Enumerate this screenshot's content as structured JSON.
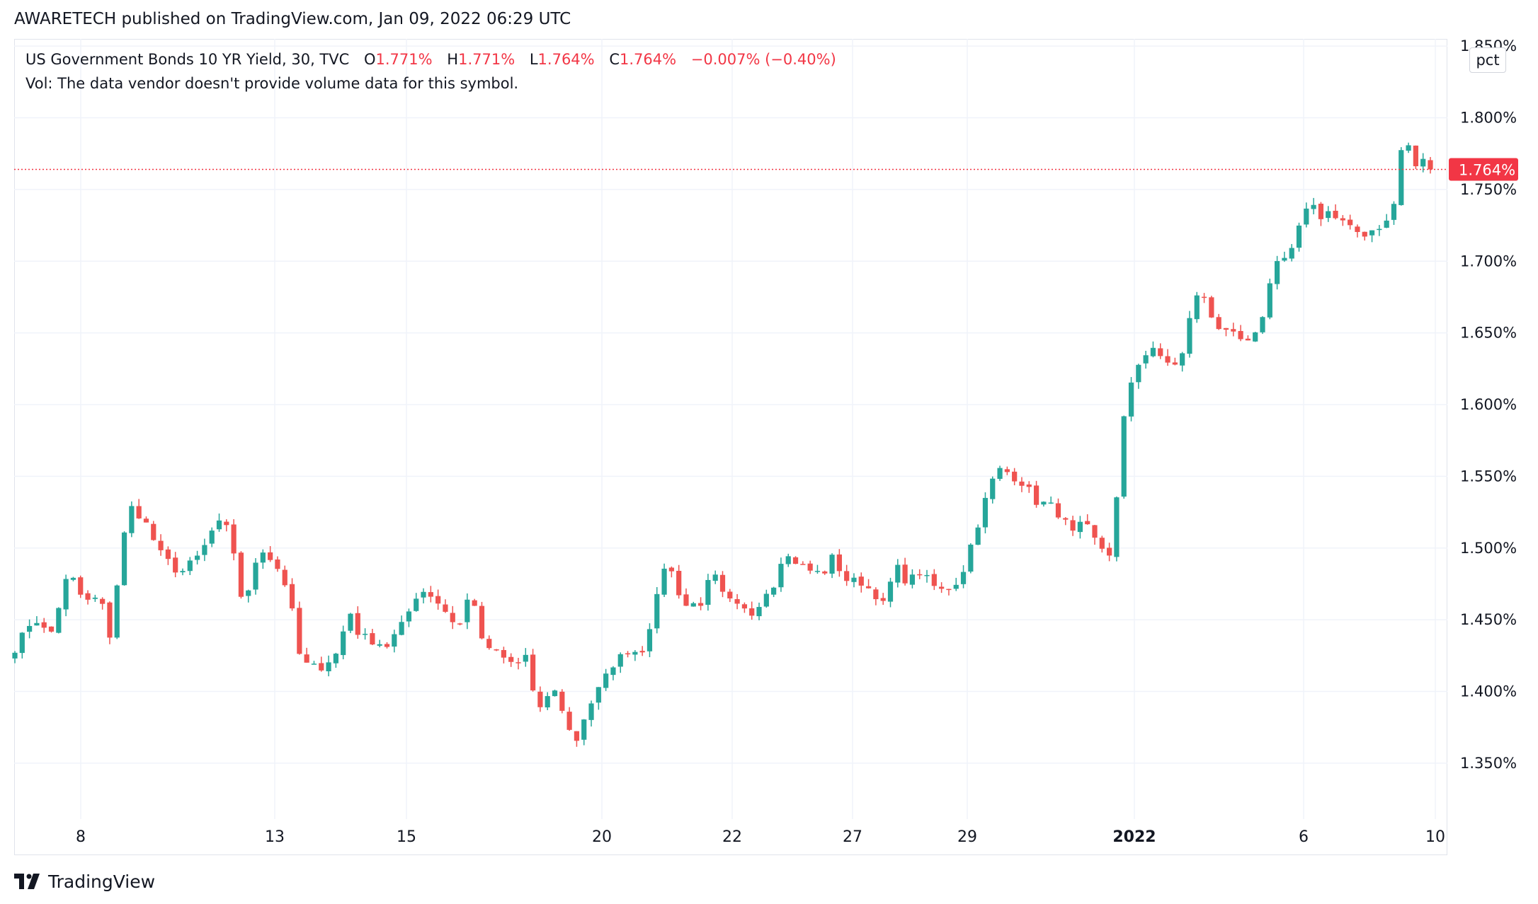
{
  "header": {
    "publisher_line": "AWARETECH published on TradingView.com, Jan 09, 2022 06:29 UTC"
  },
  "legend": {
    "symbol": "US Government Bonds 10 YR Yield, 30, TVC",
    "open_label": "O",
    "open_value": "1.771%",
    "high_label": "H",
    "high_value": "1.771%",
    "low_label": "L",
    "low_value": "1.764%",
    "close_label": "C",
    "close_value": "1.764%",
    "change": "−0.007% (−0.40%)",
    "volume_note": "Vol: The data vendor doesn't provide volume data for this symbol."
  },
  "price_scale": {
    "unit_button": "pct",
    "last_price_label": "1.764%"
  },
  "footer": {
    "brand": "TradingView"
  },
  "colors": {
    "up": "#26a69a",
    "down": "#ef5350",
    "grid": "#f0f3fa",
    "last_price_line": "#f23645",
    "text": "#131722"
  },
  "chart_data": {
    "type": "candlestick",
    "title": "US Government Bonds 10 YR Yield, 30, TVC",
    "x_tick_labels": [
      "8",
      "13",
      "15",
      "20",
      "22",
      "27",
      "29",
      "2022",
      "6",
      "10"
    ],
    "y_tick_labels": [
      "1.850%",
      "1.800%",
      "1.750%",
      "1.700%",
      "1.650%",
      "1.600%",
      "1.550%",
      "1.500%",
      "1.450%",
      "1.400%",
      "1.350%"
    ],
    "y_ticks": [
      1.85,
      1.8,
      1.75,
      1.7,
      1.65,
      1.6,
      1.55,
      1.5,
      1.45,
      1.4,
      1.35
    ],
    "ylim": [
      1.311,
      1.855
    ],
    "grid": true,
    "last_price": 1.764,
    "keypoints": [
      {
        "x": 0,
        "y": 1.43
      },
      {
        "x": 2.6,
        "y": 1.452
      },
      {
        "x": 4.8,
        "y": 1.438
      },
      {
        "x": 7.4,
        "y": 1.484
      },
      {
        "x": 9.5,
        "y": 1.462
      },
      {
        "x": 11.8,
        "y": 1.466
      },
      {
        "x": 12.8,
        "y": 1.432
      },
      {
        "x": 14.6,
        "y": 1.496
      },
      {
        "x": 15.6,
        "y": 1.53
      },
      {
        "x": 17.7,
        "y": 1.52
      },
      {
        "x": 19.8,
        "y": 1.497
      },
      {
        "x": 22.6,
        "y": 1.482
      },
      {
        "x": 25.5,
        "y": 1.496
      },
      {
        "x": 27.6,
        "y": 1.518
      },
      {
        "x": 29.5,
        "y": 1.512
      },
      {
        "x": 31.4,
        "y": 1.455
      },
      {
        "x": 33.5,
        "y": 1.502
      },
      {
        "x": 35.8,
        "y": 1.488
      },
      {
        "x": 37.5,
        "y": 1.47
      },
      {
        "x": 39.2,
        "y": 1.42
      },
      {
        "x": 41.7,
        "y": 1.416
      },
      {
        "x": 44.0,
        "y": 1.426
      },
      {
        "x": 45.9,
        "y": 1.456
      },
      {
        "x": 47.1,
        "y": 1.44
      },
      {
        "x": 48.7,
        "y": 1.436
      },
      {
        "x": 51.0,
        "y": 1.432
      },
      {
        "x": 53.3,
        "y": 1.448
      },
      {
        "x": 55.3,
        "y": 1.47
      },
      {
        "x": 56.5,
        "y": 1.47
      },
      {
        "x": 58.4,
        "y": 1.46
      },
      {
        "x": 60.8,
        "y": 1.444
      },
      {
        "x": 62.6,
        "y": 1.473
      },
      {
        "x": 63.9,
        "y": 1.435
      },
      {
        "x": 66.6,
        "y": 1.424
      },
      {
        "x": 68.6,
        "y": 1.418
      },
      {
        "x": 70.1,
        "y": 1.426
      },
      {
        "x": 71.6,
        "y": 1.382
      },
      {
        "x": 73.6,
        "y": 1.404
      },
      {
        "x": 75.0,
        "y": 1.388
      },
      {
        "x": 76.7,
        "y": 1.362
      },
      {
        "x": 78.3,
        "y": 1.386
      },
      {
        "x": 80.3,
        "y": 1.404
      },
      {
        "x": 82.1,
        "y": 1.42
      },
      {
        "x": 84.3,
        "y": 1.43
      },
      {
        "x": 85.8,
        "y": 1.426
      },
      {
        "x": 87.6,
        "y": 1.456
      },
      {
        "x": 89.3,
        "y": 1.494
      },
      {
        "x": 90.7,
        "y": 1.472
      },
      {
        "x": 92.0,
        "y": 1.46
      },
      {
        "x": 94.1,
        "y": 1.462
      },
      {
        "x": 95.6,
        "y": 1.484
      },
      {
        "x": 97.1,
        "y": 1.466
      },
      {
        "x": 99.2,
        "y": 1.458
      },
      {
        "x": 101.1,
        "y": 1.454
      },
      {
        "x": 102.7,
        "y": 1.468
      },
      {
        "x": 104.2,
        "y": 1.476
      },
      {
        "x": 105.2,
        "y": 1.496
      },
      {
        "x": 107.2,
        "y": 1.49
      },
      {
        "x": 109.1,
        "y": 1.484
      },
      {
        "x": 110.8,
        "y": 1.482
      },
      {
        "x": 112.1,
        "y": 1.494
      },
      {
        "x": 113.8,
        "y": 1.478
      },
      {
        "x": 116.1,
        "y": 1.476
      },
      {
        "x": 117.9,
        "y": 1.468
      },
      {
        "x": 119.1,
        "y": 1.46
      },
      {
        "x": 120.7,
        "y": 1.488
      },
      {
        "x": 122.3,
        "y": 1.476
      },
      {
        "x": 124.1,
        "y": 1.484
      },
      {
        "x": 125.7,
        "y": 1.474
      },
      {
        "x": 127.2,
        "y": 1.47
      },
      {
        "x": 129.0,
        "y": 1.476
      },
      {
        "x": 130.1,
        "y": 1.486
      },
      {
        "x": 131.0,
        "y": 1.502
      },
      {
        "x": 132.2,
        "y": 1.52
      },
      {
        "x": 133.7,
        "y": 1.545
      },
      {
        "x": 135.2,
        "y": 1.556
      },
      {
        "x": 136.8,
        "y": 1.55
      },
      {
        "x": 138.5,
        "y": 1.544
      },
      {
        "x": 140.3,
        "y": 1.53
      },
      {
        "x": 141.5,
        "y": 1.532
      },
      {
        "x": 143.4,
        "y": 1.522
      },
      {
        "x": 145.0,
        "y": 1.51
      },
      {
        "x": 146.5,
        "y": 1.518
      },
      {
        "x": 148.2,
        "y": 1.504
      },
      {
        "x": 149.4,
        "y": 1.498
      },
      {
        "x": 150.1,
        "y": 1.496
      },
      {
        "x": 150.6,
        "y": 1.53
      },
      {
        "x": 151.0,
        "y": 1.534
      },
      {
        "x": 151.7,
        "y": 1.58
      },
      {
        "x": 152.7,
        "y": 1.612
      },
      {
        "x": 154.2,
        "y": 1.632
      },
      {
        "x": 155.8,
        "y": 1.638
      },
      {
        "x": 157.4,
        "y": 1.632
      },
      {
        "x": 159.4,
        "y": 1.626
      },
      {
        "x": 160.4,
        "y": 1.64
      },
      {
        "x": 161.3,
        "y": 1.672
      },
      {
        "x": 162.8,
        "y": 1.678
      },
      {
        "x": 164.2,
        "y": 1.66
      },
      {
        "x": 165.5,
        "y": 1.65
      },
      {
        "x": 167.0,
        "y": 1.648
      },
      {
        "x": 168.9,
        "y": 1.642
      },
      {
        "x": 170.4,
        "y": 1.65
      },
      {
        "x": 171.8,
        "y": 1.68
      },
      {
        "x": 173.2,
        "y": 1.706
      },
      {
        "x": 174.5,
        "y": 1.7
      },
      {
        "x": 175.4,
        "y": 1.716
      },
      {
        "x": 176.4,
        "y": 1.728
      },
      {
        "x": 177.8,
        "y": 1.742
      },
      {
        "x": 178.7,
        "y": 1.73
      },
      {
        "x": 180.2,
        "y": 1.736
      },
      {
        "x": 181.8,
        "y": 1.728
      },
      {
        "x": 183.4,
        "y": 1.724
      },
      {
        "x": 184.6,
        "y": 1.716
      },
      {
        "x": 186.0,
        "y": 1.72
      },
      {
        "x": 187.8,
        "y": 1.726
      },
      {
        "x": 188.8,
        "y": 1.73
      },
      {
        "x": 189.3,
        "y": 1.762
      },
      {
        "x": 189.9,
        "y": 1.776
      },
      {
        "x": 190.5,
        "y": 1.792
      },
      {
        "x": 191.2,
        "y": 1.776
      },
      {
        "x": 192.0,
        "y": 1.768
      },
      {
        "x": 193.0,
        "y": 1.77
      },
      {
        "x": 194.0,
        "y": 1.764
      }
    ]
  }
}
